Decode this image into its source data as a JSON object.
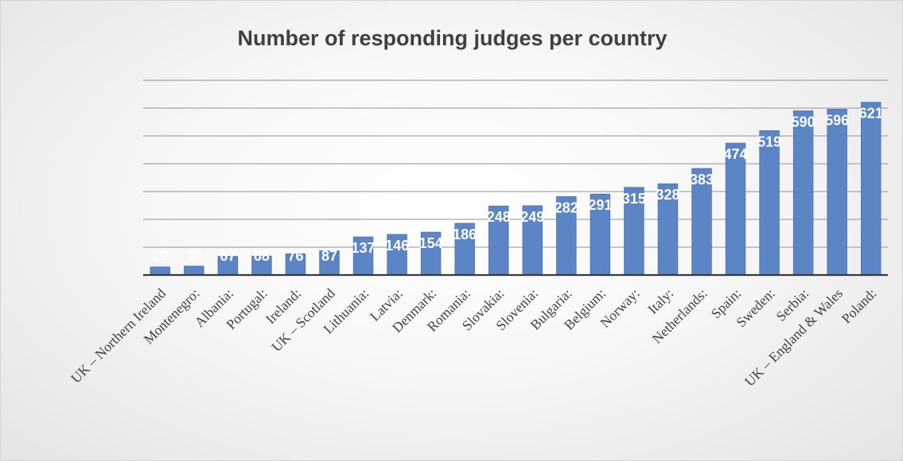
{
  "chart_data": {
    "type": "bar",
    "title": "Number of responding judges per country",
    "xlabel": "",
    "ylabel": "",
    "ylim": [
      0,
      700
    ],
    "grid": "horizontal",
    "categories": [
      "UK – Northern Ireland",
      "Montenegro:",
      "Albania:",
      "Portugal:",
      "Ireland:",
      "UK – Scotland",
      "Lithuania:",
      "Latvia:",
      "Denmark:",
      "Romania:",
      "Slovakia:",
      "Slovenia:",
      "Bulgaria:",
      "Belgium:",
      "Norway:",
      "Italy:",
      "Netherlands:",
      "Spain:",
      "Sweden:",
      "Serbia:",
      "UK – England & Wales",
      "Poland:"
    ],
    "values": [
      29,
      32,
      67,
      68,
      76,
      87,
      137,
      146,
      154,
      186,
      248,
      249,
      282,
      291,
      315,
      328,
      383,
      474,
      519,
      590,
      596,
      621
    ],
    "bar_color": "#5b85c4"
  }
}
